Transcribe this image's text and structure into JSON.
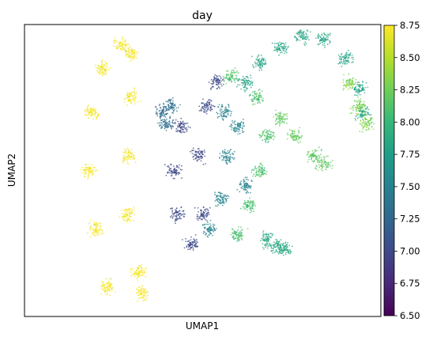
{
  "chart_data": {
    "type": "scatter",
    "title": "day",
    "xlabel": "UMAP1",
    "ylabel": "UMAP2",
    "color_variable": "day",
    "colormap": "viridis",
    "colormap_stops": [
      "#440154",
      "#482878",
      "#3e4989",
      "#31688e",
      "#26828e",
      "#1f9e89",
      "#35b779",
      "#6ece58",
      "#b5de2b",
      "#fde725"
    ],
    "color_range": [
      6.5,
      8.75
    ],
    "colorbar_ticks": [
      "6.50",
      "6.75",
      "7.00",
      "7.25",
      "7.50",
      "7.75",
      "8.00",
      "8.25",
      "8.50",
      "8.75"
    ],
    "xlim": [
      0,
      100
    ],
    "ylim": [
      0,
      100
    ],
    "axis_ticks_shown": false,
    "grid": false,
    "clusters": [
      {
        "id": "left-arc",
        "day": 8.75,
        "points": [
          [
            23,
            10
          ],
          [
            20,
            30
          ],
          [
            18,
            50
          ],
          [
            19,
            70
          ],
          [
            22,
            85
          ],
          [
            27,
            93
          ],
          [
            30,
            90
          ],
          [
            30,
            75
          ],
          [
            29,
            55
          ],
          [
            29,
            35
          ],
          [
            32,
            15
          ],
          [
            33,
            8
          ]
        ]
      },
      {
        "id": "main-body-early",
        "day": 7.0,
        "points": [
          [
            44,
            65
          ],
          [
            42,
            50
          ],
          [
            43,
            35
          ],
          [
            47,
            25
          ],
          [
            50,
            35
          ],
          [
            49,
            55
          ],
          [
            51,
            72
          ],
          [
            54,
            80
          ]
        ]
      },
      {
        "id": "main-body-mid",
        "day": 7.5,
        "points": [
          [
            52,
            30
          ],
          [
            55,
            40
          ],
          [
            57,
            55
          ],
          [
            56,
            70
          ],
          [
            60,
            65
          ],
          [
            62,
            45
          ]
        ]
      },
      {
        "id": "main-body-late",
        "day": 8.1,
        "points": [
          [
            60,
            28
          ],
          [
            63,
            38
          ],
          [
            66,
            50
          ],
          [
            68,
            62
          ],
          [
            65,
            75
          ],
          [
            58,
            82
          ]
        ]
      },
      {
        "id": "left-bulge",
        "day": 7.3,
        "points": [
          [
            39,
            70
          ],
          [
            41,
            72
          ],
          [
            40,
            66
          ]
        ]
      },
      {
        "id": "upper-arc",
        "day": 7.8,
        "points": [
          [
            62,
            80
          ],
          [
            66,
            87
          ],
          [
            72,
            92
          ],
          [
            78,
            96
          ],
          [
            84,
            95
          ],
          [
            90,
            88
          ],
          [
            94,
            78
          ],
          [
            95,
            70
          ]
        ]
      },
      {
        "id": "upper-arc-tip",
        "day": 8.3,
        "points": [
          [
            96,
            66
          ],
          [
            94,
            72
          ],
          [
            91,
            80
          ]
        ]
      },
      {
        "id": "right-spur",
        "day": 8.2,
        "points": [
          [
            72,
            68
          ],
          [
            76,
            62
          ],
          [
            81,
            55
          ],
          [
            84,
            52
          ]
        ]
      },
      {
        "id": "bottom-blob",
        "day": 7.85,
        "points": [
          [
            68,
            26
          ],
          [
            71,
            24
          ],
          [
            73,
            23
          ]
        ]
      }
    ]
  }
}
